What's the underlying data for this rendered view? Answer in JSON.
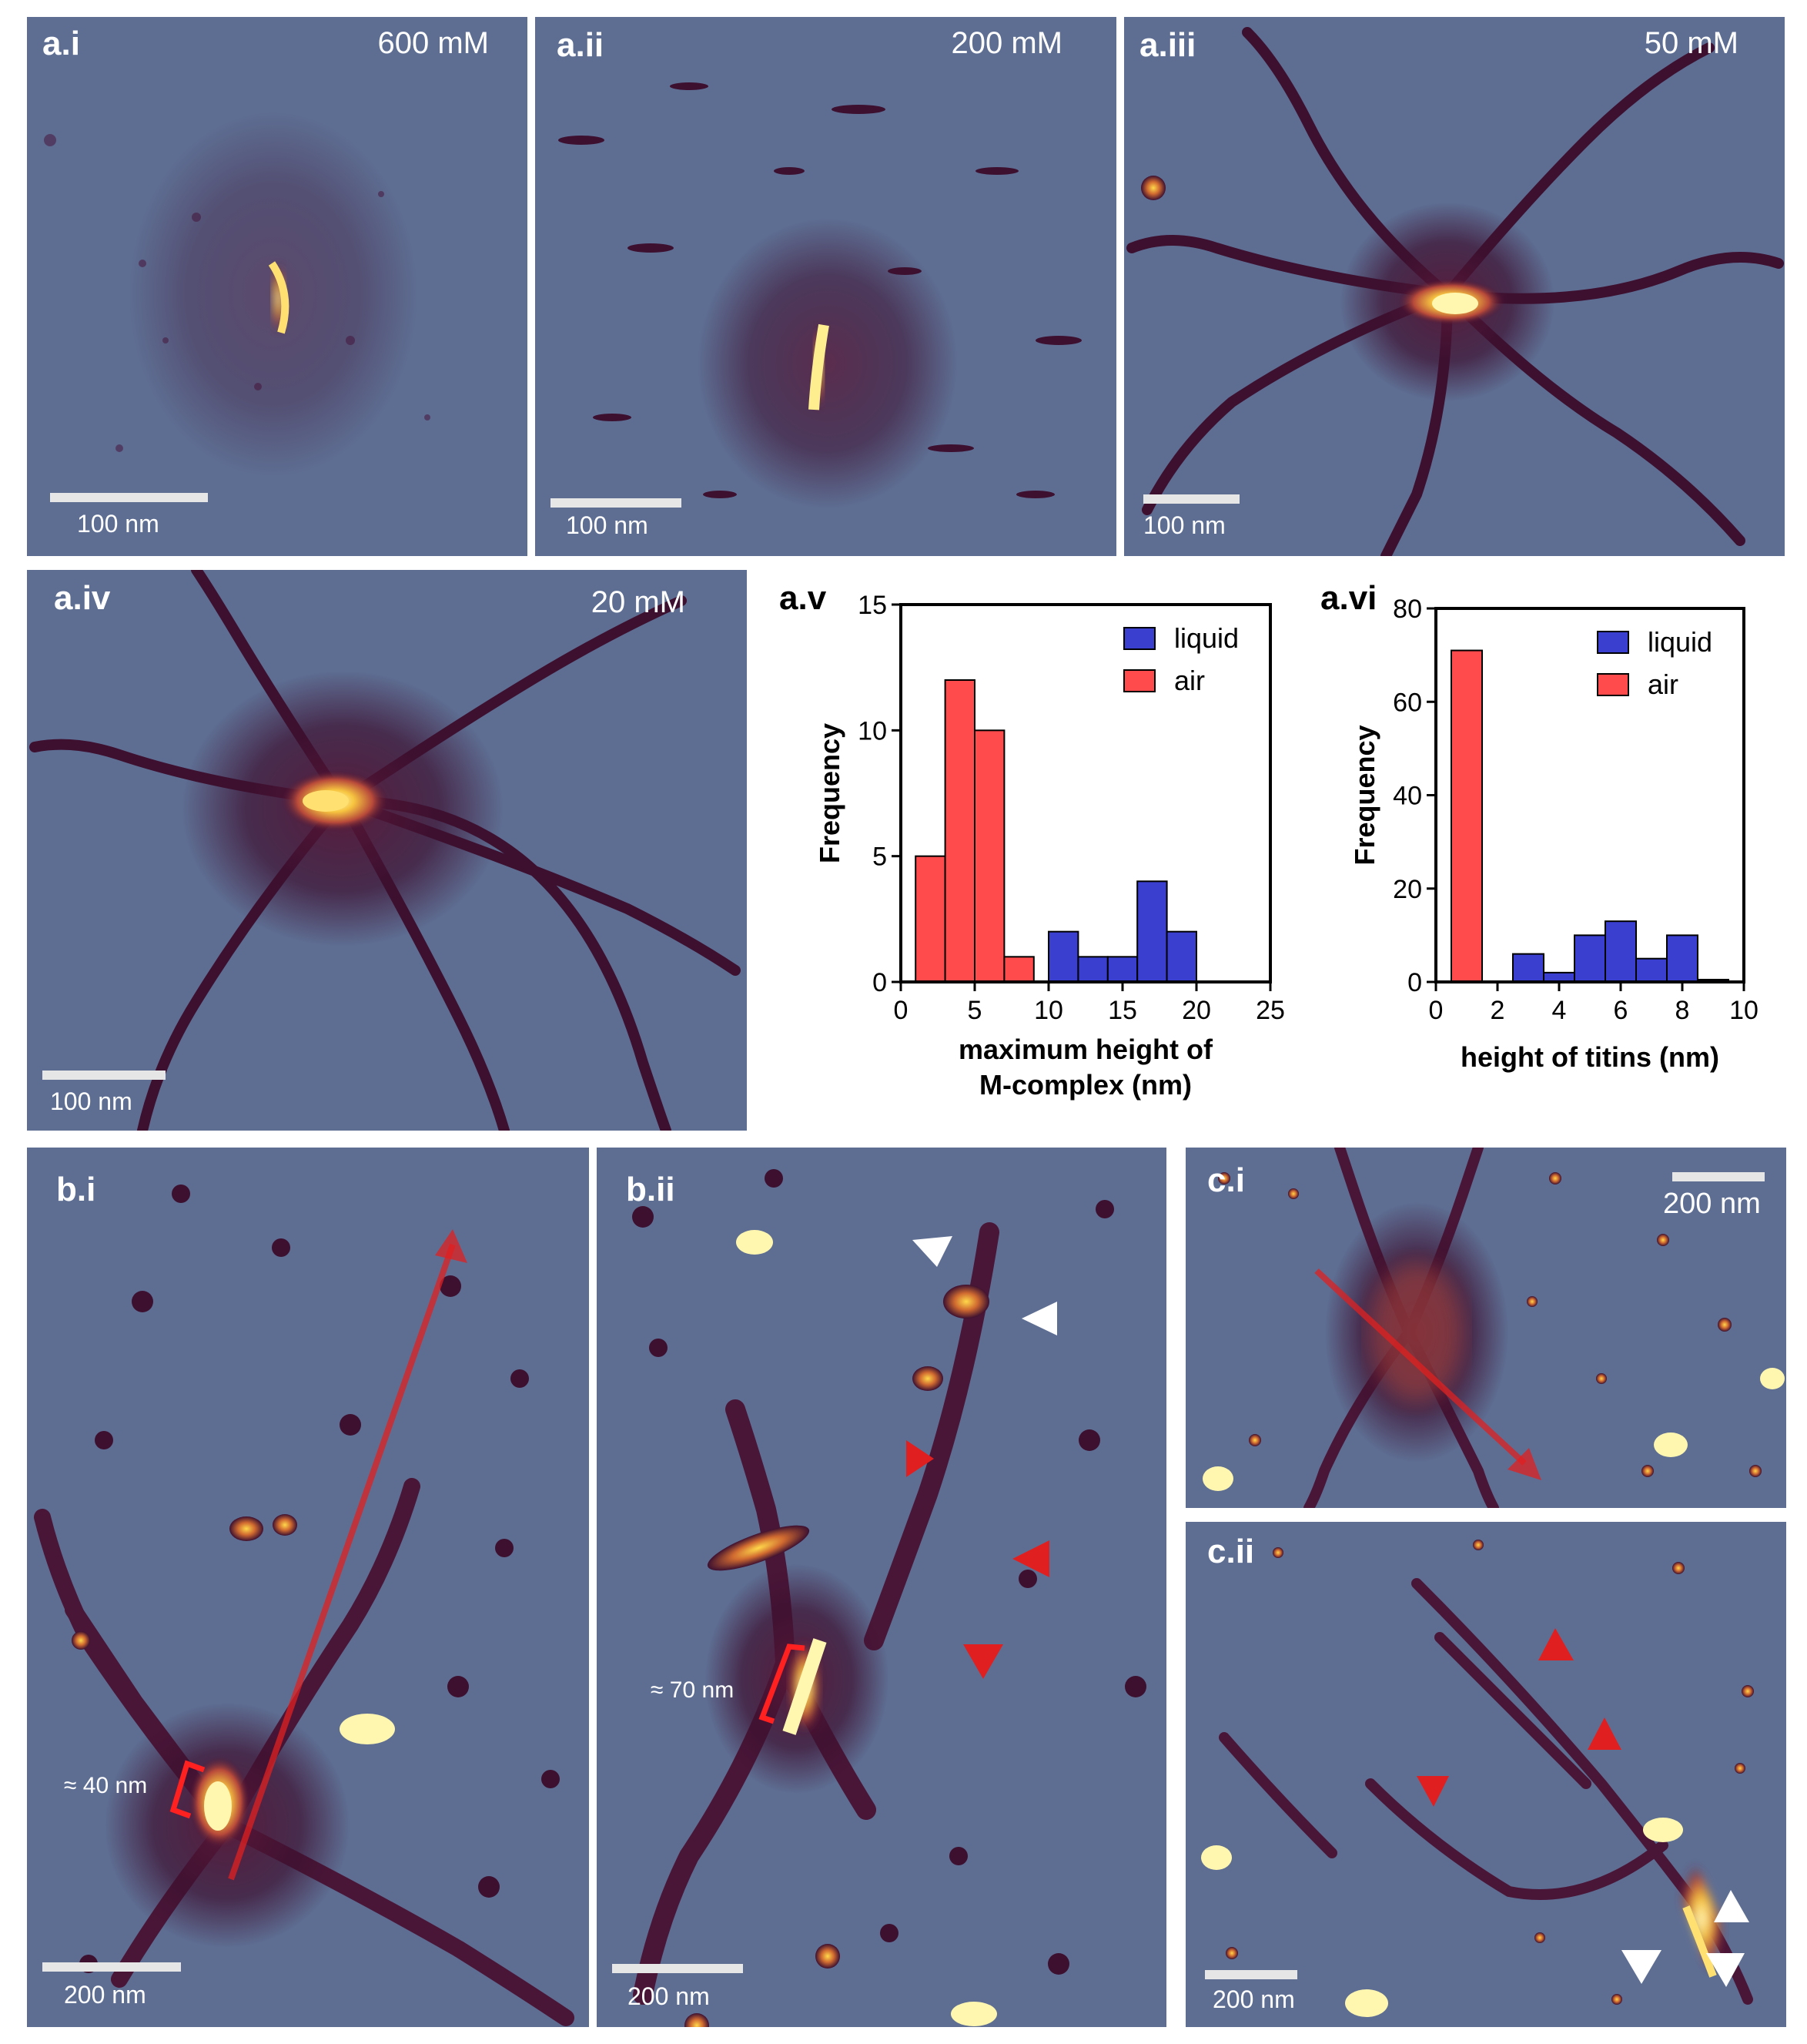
{
  "panels": {
    "ai": {
      "label": "a.i",
      "conc": "600 mM",
      "scale": "100 nm"
    },
    "aii": {
      "label": "a.ii",
      "conc": "200 mM",
      "scale": "100 nm"
    },
    "aiii": {
      "label": "a.iii",
      "conc": "50 mM",
      "scale": "100 nm"
    },
    "aiv": {
      "label": "a.iv",
      "conc": "20 mM",
      "scale": "100 nm"
    },
    "bi": {
      "label": "b.i",
      "scale": "200 nm",
      "annotation": "≈ 40 nm"
    },
    "bii": {
      "label": "b.ii",
      "scale": "200 nm",
      "annotation": "≈ 70 nm"
    },
    "ci": {
      "label": "c.i",
      "scale": "200 nm"
    },
    "cii": {
      "label": "c.ii",
      "scale": "200 nm"
    }
  },
  "colors": {
    "background": "#5e6e93",
    "dark": "#3d1030",
    "mid": "#8a2a4a",
    "hot": "#f0a020",
    "bright": "#fff6b0",
    "arrow_red": "#e02020",
    "arrow_white": "#ffffff"
  },
  "chart_data": [
    {
      "panel_label": "a.v",
      "type": "bar",
      "xlabel_line1": "maximum height of",
      "xlabel_line2": "M-complex (nm)",
      "ylabel": "Frequency",
      "xlim": [
        0,
        25
      ],
      "ylim": [
        0,
        15
      ],
      "xticks": [
        "0",
        "5",
        "10",
        "15",
        "20",
        "25"
      ],
      "yticks": [
        "0",
        "5",
        "10",
        "15"
      ],
      "legend_placement": "top-right",
      "series": [
        {
          "name": "liquid",
          "color": "#3b3fd0",
          "bins": [
            [
              10,
              12,
              2
            ],
            [
              12,
              14,
              1
            ],
            [
              14,
              16,
              1
            ],
            [
              16,
              18,
              4
            ],
            [
              18,
              20,
              2
            ]
          ]
        },
        {
          "name": "air",
          "color": "#ff4b4b",
          "bins": [
            [
              1,
              3,
              5
            ],
            [
              3,
              5,
              12
            ],
            [
              5,
              7,
              10
            ],
            [
              7,
              9,
              1
            ]
          ]
        }
      ]
    },
    {
      "panel_label": "a.vi",
      "type": "bar",
      "xlabel": "height of titins (nm)",
      "ylabel": "Frequency",
      "xlim": [
        0,
        10
      ],
      "ylim": [
        0,
        80
      ],
      "xticks": [
        "0",
        "2",
        "4",
        "6",
        "8",
        "10"
      ],
      "yticks": [
        "0",
        "20",
        "40",
        "60",
        "80"
      ],
      "legend_placement": "top-right",
      "series": [
        {
          "name": "liquid",
          "color": "#3b3fd0",
          "bins": [
            [
              2.5,
              3.5,
              6
            ],
            [
              3.5,
              4.5,
              2
            ],
            [
              4.5,
              5.5,
              10
            ],
            [
              5.5,
              6.5,
              13
            ],
            [
              6.5,
              7.5,
              5
            ],
            [
              7.5,
              8.5,
              10
            ],
            [
              8.5,
              9.5,
              0.5
            ]
          ]
        },
        {
          "name": "air",
          "color": "#ff4b4b",
          "bins": [
            [
              0.5,
              1.5,
              71
            ]
          ]
        }
      ]
    }
  ]
}
